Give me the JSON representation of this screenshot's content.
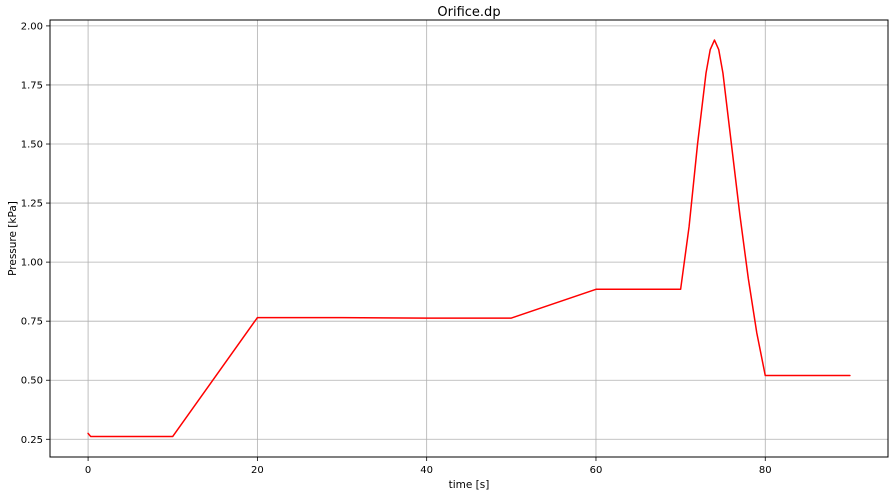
{
  "chart_data": {
    "type": "line",
    "title": "Orifice.dp",
    "xlabel": "time [s]",
    "ylabel": "Pressure [kPa]",
    "xlim": [
      -4.5,
      94.5
    ],
    "ylim": [
      0.175,
      2.025
    ],
    "xticks": [
      0,
      20,
      40,
      60,
      80
    ],
    "xtick_labels": [
      "0",
      "20",
      "40",
      "60",
      "80"
    ],
    "yticks": [
      0.25,
      0.5,
      0.75,
      1.0,
      1.25,
      1.5,
      1.75,
      2.0
    ],
    "ytick_labels": [
      "0.25",
      "0.50",
      "0.75",
      "1.00",
      "1.25",
      "1.50",
      "1.75",
      "2.00"
    ],
    "grid": true,
    "legend": "none",
    "series": [
      {
        "color": "#ff0000",
        "x": [
          0,
          0.3,
          10,
          20,
          30,
          40,
          50,
          60,
          70,
          71,
          72,
          73,
          73.5,
          74,
          74.5,
          75,
          76,
          77,
          78,
          79,
          80,
          81,
          90
        ],
        "y": [
          0.275,
          0.262,
          0.262,
          0.765,
          0.765,
          0.763,
          0.763,
          0.885,
          0.885,
          1.15,
          1.5,
          1.8,
          1.9,
          1.94,
          1.9,
          1.8,
          1.5,
          1.2,
          0.93,
          0.7,
          0.52,
          0.52,
          0.52
        ]
      }
    ]
  }
}
